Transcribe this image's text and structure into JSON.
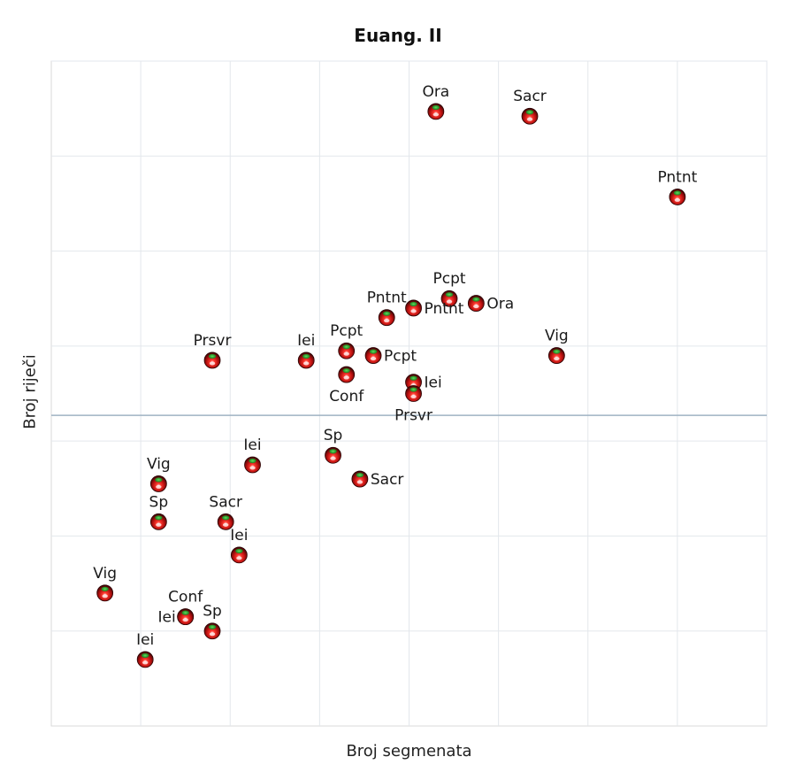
{
  "chart_data": {
    "type": "scatter",
    "title": "Euang. II",
    "xlabel": "Broj segmenata",
    "ylabel": "Broj riječi",
    "xlim": [
      -1,
      7
    ],
    "ylim": [
      -4,
      3
    ],
    "x_ticks": [
      0,
      1,
      2,
      3,
      4,
      5,
      6,
      7
    ],
    "y_ticks": [
      -3,
      -2,
      -1,
      0,
      1,
      2,
      3
    ],
    "x_tick_labels_shown": false,
    "y_tick_labels_shown": false,
    "grid": true,
    "reference_line": {
      "axis": "y",
      "value": -0.73
    },
    "marker": "sphere",
    "colors": {
      "marker_fill": "#c0141a",
      "marker_dark": "#3a0505",
      "marker_highlight": "#3cc83c",
      "grid": "#e3e7ec",
      "reference_line": "#9fb3c3",
      "frame": "#d9d9d9"
    },
    "points": [
      {
        "label": "Ora",
        "x": 3.3,
        "y": 2.47,
        "label_pos": "above"
      },
      {
        "label": "Sacr",
        "x": 4.35,
        "y": 2.42,
        "label_pos": "above"
      },
      {
        "label": "Pntnt",
        "x": 6.0,
        "y": 1.57,
        "label_pos": "above"
      },
      {
        "label": "Pcpt",
        "x": 3.45,
        "y": 0.5,
        "label_pos": "above"
      },
      {
        "label": "Ora",
        "x": 3.75,
        "y": 0.45,
        "label_pos": "right"
      },
      {
        "label": "Pntnt",
        "x": 3.05,
        "y": 0.4,
        "label_pos": "right"
      },
      {
        "label": "Pntnt",
        "x": 2.75,
        "y": 0.3,
        "label_pos": "above"
      },
      {
        "label": "Prsvr",
        "x": 0.8,
        "y": -0.15,
        "label_pos": "above"
      },
      {
        "label": "Iei",
        "x": 1.85,
        "y": -0.15,
        "label_pos": "above"
      },
      {
        "label": "Pcpt",
        "x": 2.3,
        "y": -0.05,
        "label_pos": "above"
      },
      {
        "label": "Pcpt",
        "x": 2.6,
        "y": -0.1,
        "label_pos": "right"
      },
      {
        "label": "Vig",
        "x": 4.65,
        "y": -0.1,
        "label_pos": "above"
      },
      {
        "label": "Conf",
        "x": 2.3,
        "y": -0.3,
        "label_pos": "below"
      },
      {
        "label": "Iei",
        "x": 3.05,
        "y": -0.38,
        "label_pos": "right"
      },
      {
        "label": "Prsvr",
        "x": 3.05,
        "y": -0.5,
        "label_pos": "below"
      },
      {
        "label": "Sp",
        "x": 2.15,
        "y": -1.15,
        "label_pos": "above"
      },
      {
        "label": "Iei",
        "x": 1.25,
        "y": -1.25,
        "label_pos": "above"
      },
      {
        "label": "Sacr",
        "x": 2.45,
        "y": -1.4,
        "label_pos": "right"
      },
      {
        "label": "Vig",
        "x": 0.2,
        "y": -1.45,
        "label_pos": "above"
      },
      {
        "label": "Sp",
        "x": 0.2,
        "y": -1.85,
        "label_pos": "above"
      },
      {
        "label": "Sacr",
        "x": 0.95,
        "y": -1.85,
        "label_pos": "above"
      },
      {
        "label": "Iei",
        "x": 1.1,
        "y": -2.2,
        "label_pos": "above"
      },
      {
        "label": "Vig",
        "x": -0.4,
        "y": -2.6,
        "label_pos": "above"
      },
      {
        "label": "Conf",
        "x": 0.5,
        "y": -2.85,
        "label_pos": "above"
      },
      {
        "label": "Iei",
        "x": 0.5,
        "y": -2.85,
        "label_pos": "left"
      },
      {
        "label": "Sp",
        "x": 0.8,
        "y": -3.0,
        "label_pos": "above"
      },
      {
        "label": "Iei",
        "x": 0.05,
        "y": -3.3,
        "label_pos": "above"
      }
    ]
  }
}
